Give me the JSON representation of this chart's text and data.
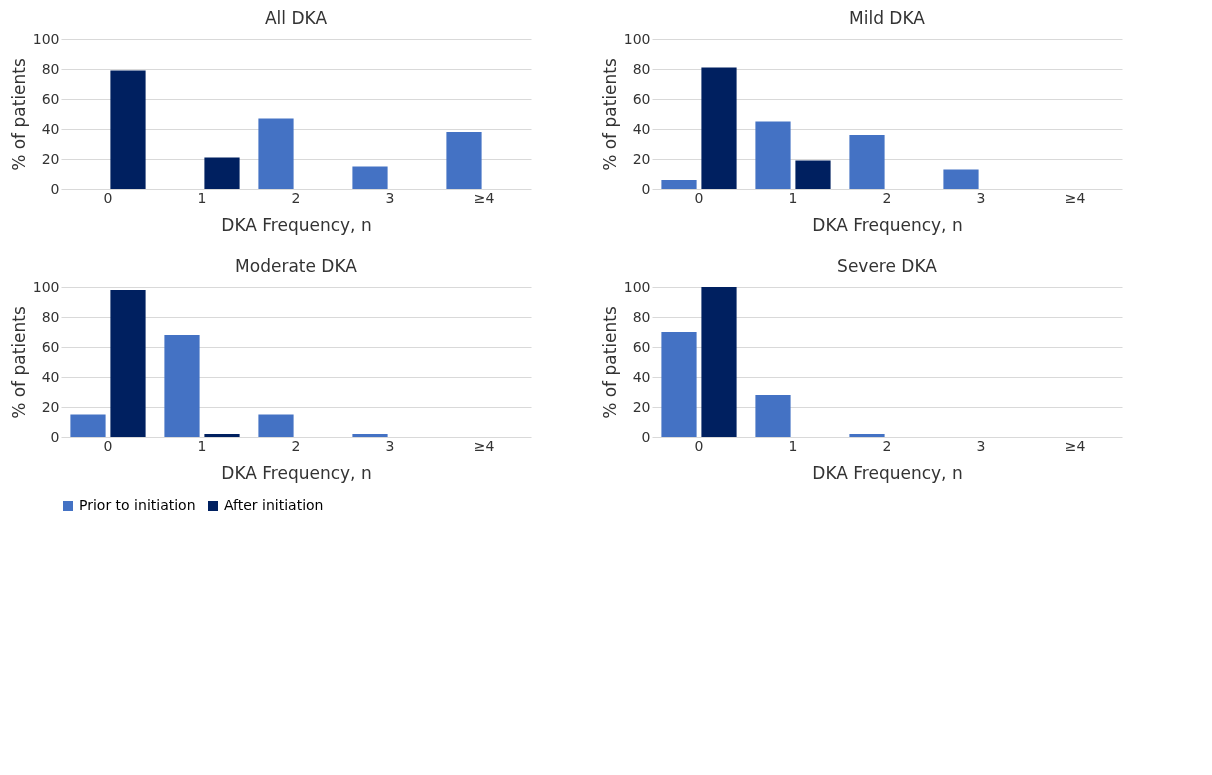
{
  "chart_data": [
    {
      "type": "bar",
      "title": "All DKA",
      "xlabel": "DKA Frequency, n",
      "ylabel": "% of patients",
      "categories": [
        "0",
        "1",
        "2",
        "3",
        "≥4"
      ],
      "series": [
        {
          "name": "Prior to initiation",
          "color": "#4472c4",
          "values": [
            0,
            0,
            47,
            15,
            38
          ]
        },
        {
          "name": "After initiation",
          "color": "#002060",
          "values": [
            79,
            21,
            0,
            0,
            0
          ]
        }
      ],
      "ylim": [
        0,
        100
      ],
      "yticks": [
        0,
        20,
        40,
        60,
        80,
        100
      ],
      "grid": "y",
      "legend": "bottom"
    },
    {
      "type": "bar",
      "title": "Mild DKA",
      "xlabel": "DKA Frequency, n",
      "ylabel": "% of patients",
      "categories": [
        "0",
        "1",
        "2",
        "3",
        "≥4"
      ],
      "series": [
        {
          "name": "Prior to initiation",
          "color": "#4472c4",
          "values": [
            6,
            45,
            36,
            13,
            0
          ]
        },
        {
          "name": "After initiation",
          "color": "#002060",
          "values": [
            81,
            19,
            0,
            0,
            0
          ]
        }
      ],
      "ylim": [
        0,
        100
      ],
      "yticks": [
        0,
        20,
        40,
        60,
        80,
        100
      ],
      "grid": "y",
      "legend": "bottom"
    },
    {
      "type": "bar",
      "title": "Moderate DKA",
      "xlabel": "DKA Frequency, n",
      "ylabel": "% of patients",
      "categories": [
        "0",
        "1",
        "2",
        "3",
        "≥4"
      ],
      "series": [
        {
          "name": "Prior to initiation",
          "color": "#4472c4",
          "values": [
            15,
            68,
            15,
            2,
            0
          ]
        },
        {
          "name": "After initiation",
          "color": "#002060",
          "values": [
            98,
            2,
            0,
            0,
            0
          ]
        }
      ],
      "ylim": [
        0,
        100
      ],
      "yticks": [
        0,
        20,
        40,
        60,
        80,
        100
      ],
      "grid": "y",
      "legend": "bottom"
    },
    {
      "type": "bar",
      "title": "Severe DKA",
      "xlabel": "DKA Frequency, n",
      "ylabel": "% of patients",
      "categories": [
        "0",
        "1",
        "2",
        "3",
        "≥4"
      ],
      "series": [
        {
          "name": "Prior to initiation",
          "color": "#4472c4",
          "values": [
            70,
            28,
            2,
            0,
            0
          ]
        },
        {
          "name": "After initiation",
          "color": "#002060",
          "values": [
            100,
            0,
            0,
            0,
            0
          ]
        }
      ],
      "ylim": [
        0,
        100
      ],
      "yticks": [
        0,
        20,
        40,
        60,
        80,
        100
      ],
      "grid": "y",
      "legend": "bottom"
    }
  ]
}
